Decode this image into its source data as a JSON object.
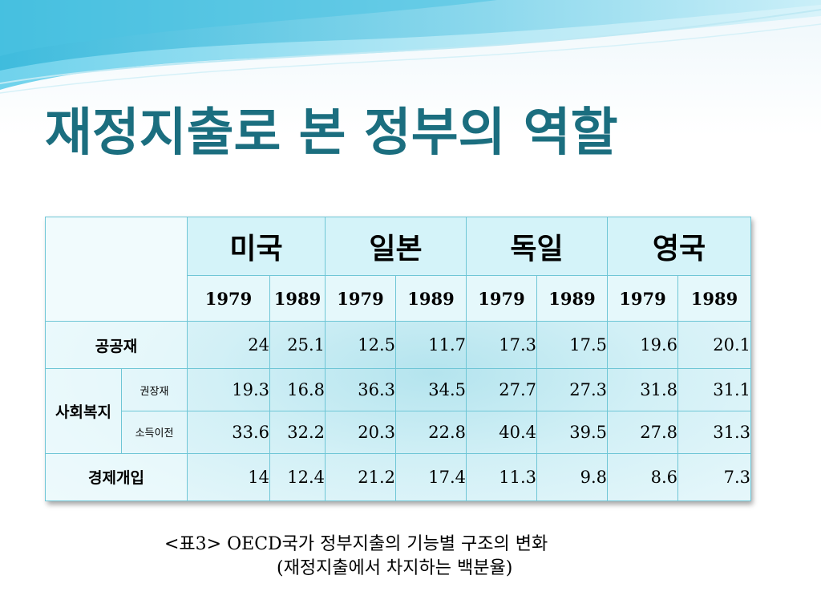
{
  "slide": {
    "title": "재정지출로 본 정부의 역할",
    "accent_color": "#1b6e7f"
  },
  "table": {
    "countries": [
      "미국",
      "일본",
      "독일",
      "영국"
    ],
    "years": [
      "1979",
      "1989",
      "1979",
      "1989",
      "1979",
      "1989",
      "1979",
      "1989"
    ],
    "rows": [
      {
        "group": "공공재",
        "sub": "",
        "values": [
          "24",
          "25.1",
          "12.5",
          "11.7",
          "17.3",
          "17.5",
          "19.6",
          "20.1"
        ]
      },
      {
        "group": "사회복지",
        "sub": "권장재",
        "values": [
          "19.3",
          "16.8",
          "36.3",
          "34.5",
          "27.7",
          "27.3",
          "31.8",
          "31.1"
        ]
      },
      {
        "group": "",
        "sub": "소득이전",
        "values": [
          "33.6",
          "32.2",
          "20.3",
          "22.8",
          "40.4",
          "39.5",
          "27.8",
          "31.3"
        ]
      },
      {
        "group": "경제개입",
        "sub": "",
        "values": [
          "14",
          "12.4",
          "21.2",
          "17.4",
          "11.3",
          "9.8",
          "8.6",
          "7.3"
        ]
      }
    ]
  },
  "caption": {
    "line1": "<표3> OECD국가 정부지출의 기능별 구조의 변화",
    "line2": "(재정지출에서 차지하는 백분율)"
  }
}
